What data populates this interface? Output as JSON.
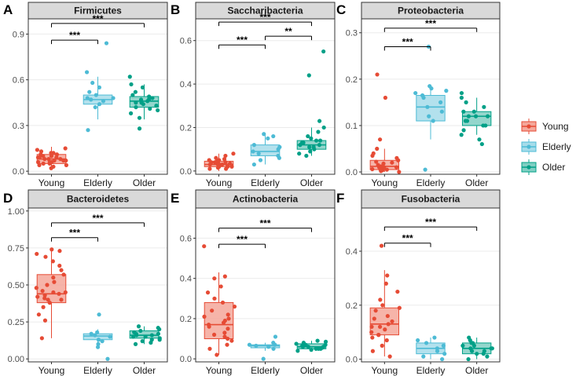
{
  "colors": {
    "Young": "#E64B35",
    "Young_fill": "#F4A79A",
    "Elderly": "#4DBBD5",
    "Elderly_fill": "#A6DCEA",
    "Older": "#00A087",
    "Older_fill": "#80CFC3",
    "panel_bg": "#ffffff",
    "strip_bg": "#d9d9d9",
    "border": "#333333",
    "grid": "#ebebeb"
  },
  "legend": {
    "entries": [
      "Young",
      "Elderly",
      "Older"
    ]
  },
  "chart_data": [
    {
      "type": "box",
      "letter": "A",
      "title": "Firmicutes",
      "categories": [
        "Young",
        "Elderly",
        "Older"
      ],
      "ylim": [
        -0.02,
        1.0
      ],
      "yticks": [
        0.0,
        0.3,
        0.6,
        0.9
      ],
      "ytick_labels": [
        "0.0",
        "0.3",
        "0.6",
        "0.9"
      ],
      "boxes": [
        {
          "q1": 0.05,
          "median": 0.08,
          "q3": 0.11,
          "lower": 0.01,
          "upper": 0.16
        },
        {
          "q1": 0.44,
          "median": 0.47,
          "q3": 0.5,
          "lower": 0.34,
          "upper": 0.62
        },
        {
          "q1": 0.42,
          "median": 0.46,
          "q3": 0.49,
          "lower": 0.34,
          "upper": 0.57
        }
      ],
      "points": [
        [
          0.02,
          0.03,
          0.04,
          0.05,
          0.05,
          0.06,
          0.06,
          0.07,
          0.07,
          0.08,
          0.08,
          0.08,
          0.09,
          0.09,
          0.1,
          0.1,
          0.11,
          0.11,
          0.12,
          0.12,
          0.13,
          0.14,
          0.15,
          0.04,
          0.09,
          0.06,
          0.07
        ],
        [
          0.27,
          0.42,
          0.44,
          0.46,
          0.47,
          0.48,
          0.48,
          0.5,
          0.52,
          0.55,
          0.58,
          0.65,
          0.84
        ],
        [
          0.28,
          0.35,
          0.38,
          0.4,
          0.42,
          0.43,
          0.44,
          0.45,
          0.46,
          0.47,
          0.48,
          0.49,
          0.5,
          0.52,
          0.55,
          0.57,
          0.62,
          0.45,
          0.41,
          0.47
        ]
      ],
      "annotations": [
        {
          "from": 0,
          "to": 1,
          "y": 0.86,
          "label": "***"
        },
        {
          "from": 0,
          "to": 2,
          "y": 0.97,
          "label": "***"
        }
      ]
    },
    {
      "type": "box",
      "letter": "B",
      "title": "Saccharibacteria",
      "categories": [
        "Young",
        "Elderly",
        "Older"
      ],
      "ylim": [
        -0.015,
        0.7
      ],
      "yticks": [
        0.0,
        0.2,
        0.4,
        0.6
      ],
      "ytick_labels": [
        "0.0",
        "0.2",
        "0.4",
        "0.6"
      ],
      "boxes": [
        {
          "q1": 0.02,
          "median": 0.03,
          "q3": 0.045,
          "lower": 0.0,
          "upper": 0.08
        },
        {
          "q1": 0.07,
          "median": 0.09,
          "q3": 0.12,
          "lower": 0.03,
          "upper": 0.17
        },
        {
          "q1": 0.1,
          "median": 0.12,
          "q3": 0.14,
          "lower": 0.07,
          "upper": 0.2
        }
      ],
      "points": [
        [
          0.01,
          0.015,
          0.02,
          0.02,
          0.025,
          0.03,
          0.03,
          0.03,
          0.035,
          0.035,
          0.04,
          0.04,
          0.045,
          0.05,
          0.05,
          0.055,
          0.06,
          0.07,
          0.08,
          0.02,
          0.03,
          0.04,
          0.01
        ],
        [
          0.03,
          0.05,
          0.06,
          0.07,
          0.08,
          0.09,
          0.1,
          0.11,
          0.12,
          0.15,
          0.16,
          0.17
        ],
        [
          0.07,
          0.08,
          0.09,
          0.1,
          0.11,
          0.11,
          0.12,
          0.12,
          0.13,
          0.13,
          0.14,
          0.14,
          0.15,
          0.16,
          0.18,
          0.2,
          0.23,
          0.44,
          0.55
        ]
      ],
      "annotations": [
        {
          "from": 0,
          "to": 1,
          "y": 0.58,
          "label": "***"
        },
        {
          "from": 1,
          "to": 2,
          "y": 0.62,
          "label": "**"
        },
        {
          "from": 0,
          "to": 2,
          "y": 0.685,
          "label": "***"
        }
      ]
    },
    {
      "type": "box",
      "letter": "C",
      "title": "Proteobacteria",
      "categories": [
        "Young",
        "Elderly",
        "Older"
      ],
      "ylim": [
        -0.005,
        0.33
      ],
      "yticks": [
        0.0,
        0.1,
        0.2,
        0.3
      ],
      "ytick_labels": [
        "0.0",
        "0.1",
        "0.2",
        "0.3"
      ],
      "boxes": [
        {
          "q1": 0.005,
          "median": 0.012,
          "q3": 0.025,
          "lower": 0.0,
          "upper": 0.05
        },
        {
          "q1": 0.11,
          "median": 0.14,
          "q3": 0.165,
          "lower": 0.07,
          "upper": 0.185
        },
        {
          "q1": 0.1,
          "median": 0.12,
          "q3": 0.13,
          "lower": 0.08,
          "upper": 0.16
        }
      ],
      "points": [
        [
          0.0,
          0.002,
          0.004,
          0.005,
          0.006,
          0.008,
          0.01,
          0.01,
          0.012,
          0.015,
          0.018,
          0.02,
          0.022,
          0.025,
          0.03,
          0.035,
          0.04,
          0.05,
          0.07,
          0.16,
          0.21,
          0.005,
          0.01
        ],
        [
          0.005,
          0.11,
          0.12,
          0.13,
          0.14,
          0.15,
          0.16,
          0.165,
          0.17,
          0.175,
          0.18,
          0.185,
          0.27
        ],
        [
          0.06,
          0.07,
          0.08,
          0.09,
          0.1,
          0.11,
          0.11,
          0.12,
          0.12,
          0.13,
          0.13,
          0.14,
          0.15,
          0.16,
          0.17,
          0.12,
          0.1
        ]
      ],
      "annotations": [
        {
          "from": 0,
          "to": 1,
          "y": 0.27,
          "label": "***"
        },
        {
          "from": 0,
          "to": 2,
          "y": 0.31,
          "label": "***"
        }
      ]
    },
    {
      "type": "box",
      "letter": "D",
      "title": "Bacteroidetes",
      "categories": [
        "Young",
        "Elderly",
        "Older"
      ],
      "ylim": [
        -0.02,
        1.02
      ],
      "yticks": [
        0.0,
        0.25,
        0.5,
        0.75,
        1.0
      ],
      "ytick_labels": [
        "0.00",
        "0.25",
        "0.50",
        "0.75",
        "1.00"
      ],
      "boxes": [
        {
          "q1": 0.38,
          "median": 0.44,
          "q3": 0.57,
          "lower": 0.14,
          "upper": 0.74
        },
        {
          "q1": 0.13,
          "median": 0.155,
          "q3": 0.17,
          "lower": 0.08,
          "upper": 0.2
        },
        {
          "q1": 0.14,
          "median": 0.16,
          "q3": 0.19,
          "lower": 0.1,
          "upper": 0.22
        }
      ],
      "points": [
        [
          0.14,
          0.26,
          0.3,
          0.35,
          0.38,
          0.4,
          0.41,
          0.42,
          0.43,
          0.44,
          0.45,
          0.46,
          0.48,
          0.5,
          0.52,
          0.55,
          0.57,
          0.6,
          0.63,
          0.66,
          0.69,
          0.71,
          0.73,
          0.74,
          0.4,
          0.45
        ],
        [
          0.0,
          0.08,
          0.1,
          0.12,
          0.13,
          0.15,
          0.16,
          0.17,
          0.18,
          0.3
        ],
        [
          0.1,
          0.11,
          0.12,
          0.13,
          0.14,
          0.15,
          0.16,
          0.16,
          0.17,
          0.18,
          0.19,
          0.2,
          0.21,
          0.22,
          0.15,
          0.17,
          0.13
        ]
      ],
      "annotations": [
        {
          "from": 0,
          "to": 1,
          "y": 0.82,
          "label": "***"
        },
        {
          "from": 0,
          "to": 2,
          "y": 0.92,
          "label": "***"
        }
      ]
    },
    {
      "type": "box",
      "letter": "E",
      "title": "Actinobacteria",
      "categories": [
        "Young",
        "Elderly",
        "Older"
      ],
      "ylim": [
        -0.015,
        0.75
      ],
      "yticks": [
        0.0,
        0.2,
        0.4,
        0.6
      ],
      "ytick_labels": [
        "0.0",
        "0.2",
        "0.4",
        "0.6"
      ],
      "boxes": [
        {
          "q1": 0.1,
          "median": 0.17,
          "q3": 0.28,
          "lower": 0.02,
          "upper": 0.43
        },
        {
          "q1": 0.055,
          "median": 0.065,
          "q3": 0.07,
          "lower": 0.04,
          "upper": 0.08
        },
        {
          "q1": 0.05,
          "median": 0.06,
          "q3": 0.075,
          "lower": 0.04,
          "upper": 0.09
        }
      ],
      "points": [
        [
          0.02,
          0.05,
          0.07,
          0.09,
          0.1,
          0.12,
          0.13,
          0.15,
          0.16,
          0.17,
          0.18,
          0.19,
          0.2,
          0.22,
          0.24,
          0.26,
          0.28,
          0.3,
          0.33,
          0.36,
          0.4,
          0.41,
          0.56,
          0.11,
          0.21
        ],
        [
          0.0,
          0.05,
          0.06,
          0.065,
          0.07,
          0.07,
          0.08,
          0.11
        ],
        [
          0.04,
          0.045,
          0.05,
          0.05,
          0.055,
          0.06,
          0.06,
          0.065,
          0.07,
          0.07,
          0.075,
          0.08,
          0.085,
          0.09,
          0.06,
          0.05
        ]
      ],
      "annotations": [
        {
          "from": 0,
          "to": 1,
          "y": 0.57,
          "label": "***"
        },
        {
          "from": 0,
          "to": 2,
          "y": 0.65,
          "label": "***"
        }
      ]
    },
    {
      "type": "box",
      "letter": "F",
      "title": "Fusobacteria",
      "categories": [
        "Young",
        "Elderly",
        "Older"
      ],
      "ylim": [
        -0.01,
        0.56
      ],
      "yticks": [
        0.0,
        0.2,
        0.4
      ],
      "ytick_labels": [
        "0.0",
        "0.2",
        "0.4"
      ],
      "boxes": [
        {
          "q1": 0.09,
          "median": 0.13,
          "q3": 0.19,
          "lower": 0.01,
          "upper": 0.33
        },
        {
          "q1": 0.02,
          "median": 0.04,
          "q3": 0.06,
          "lower": 0.0,
          "upper": 0.08
        },
        {
          "q1": 0.02,
          "median": 0.04,
          "q3": 0.06,
          "lower": 0.0,
          "upper": 0.08
        }
      ],
      "points": [
        [
          0.01,
          0.03,
          0.05,
          0.07,
          0.08,
          0.09,
          0.1,
          0.11,
          0.12,
          0.13,
          0.14,
          0.15,
          0.16,
          0.18,
          0.19,
          0.2,
          0.22,
          0.25,
          0.28,
          0.31,
          0.42,
          0.12,
          0.09
        ],
        [
          0.0,
          0.01,
          0.02,
          0.03,
          0.04,
          0.05,
          0.06,
          0.07,
          0.08
        ],
        [
          0.0,
          0.01,
          0.02,
          0.03,
          0.03,
          0.04,
          0.04,
          0.05,
          0.05,
          0.06,
          0.06,
          0.07,
          0.08,
          0.02,
          0.04
        ]
      ],
      "annotations": [
        {
          "from": 0,
          "to": 1,
          "y": 0.43,
          "label": "***"
        },
        {
          "from": 0,
          "to": 2,
          "y": 0.49,
          "label": "***"
        }
      ]
    }
  ]
}
